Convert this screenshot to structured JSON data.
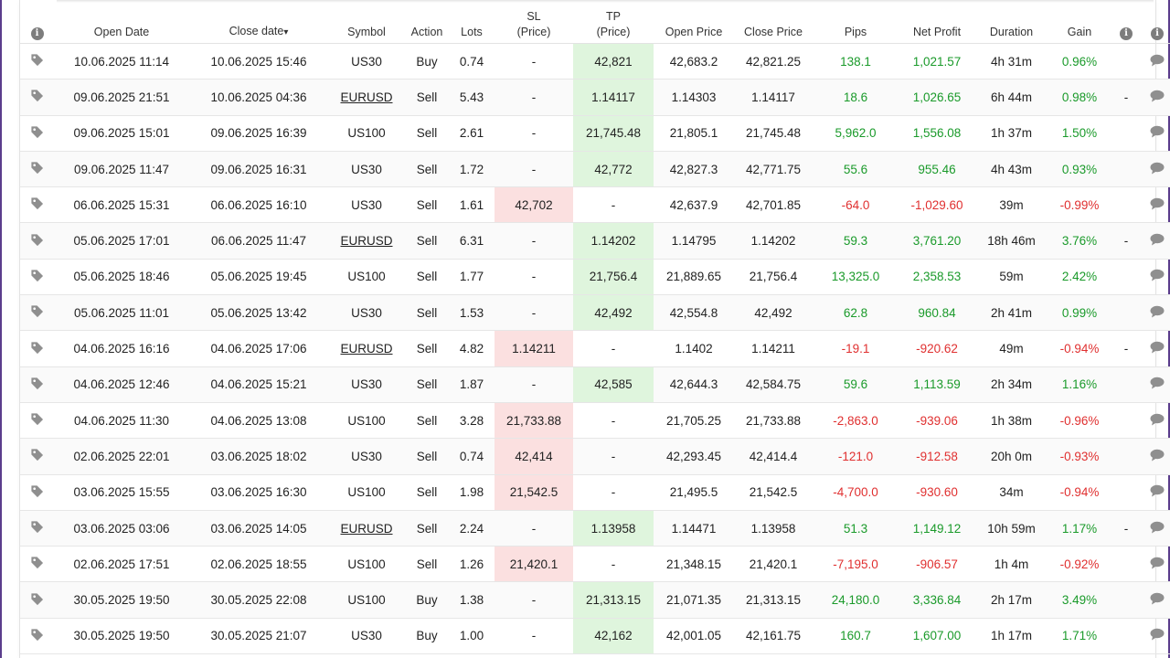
{
  "headers": {
    "open_date": "Open Date",
    "close_date": "Close date",
    "close_sort_arrow": "▾",
    "symbol": "Symbol",
    "action": "Action",
    "lots": "Lots",
    "sl_1": "SL",
    "sl_2": "(Price)",
    "tp_1": "TP",
    "tp_2": "(Price)",
    "open_price": "Open Price",
    "close_price": "Close Price",
    "pips": "Pips",
    "net_profit": "Net Profit",
    "duration": "Duration",
    "gain": "Gain"
  },
  "icons": {
    "info": "info-icon",
    "tag": "tag-icon",
    "comment": "comment-icon"
  },
  "colors": {
    "positive": "#1a9a2a",
    "negative": "#e03030",
    "tp_highlight": "#dff5dd",
    "sl_highlight": "#fbe0e0"
  },
  "rows": [
    {
      "open": "10.06.2025 11:14",
      "close": "10.06.2025 15:46",
      "symbol": "US30",
      "link": false,
      "action": "Buy",
      "lots": "0.74",
      "sl": "-",
      "tp": "42,821",
      "hit": "tp",
      "open_price": "42,683.2",
      "close_price": "42,821.25",
      "pips": "138.1",
      "profit": "1,021.57",
      "duration": "4h 31m",
      "gain": "0.96%",
      "extra": "",
      "sign": "pos"
    },
    {
      "open": "09.06.2025 21:51",
      "close": "10.06.2025 04:36",
      "symbol": "EURUSD",
      "link": true,
      "action": "Sell",
      "lots": "5.43",
      "sl": "-",
      "tp": "1.14117",
      "hit": "tp",
      "open_price": "1.14303",
      "close_price": "1.14117",
      "pips": "18.6",
      "profit": "1,026.65",
      "duration": "6h 44m",
      "gain": "0.98%",
      "extra": "-",
      "sign": "pos"
    },
    {
      "open": "09.06.2025 15:01",
      "close": "09.06.2025 16:39",
      "symbol": "US100",
      "link": false,
      "action": "Sell",
      "lots": "2.61",
      "sl": "-",
      "tp": "21,745.48",
      "hit": "tp",
      "open_price": "21,805.1",
      "close_price": "21,745.48",
      "pips": "5,962.0",
      "profit": "1,556.08",
      "duration": "1h 37m",
      "gain": "1.50%",
      "extra": "",
      "sign": "pos"
    },
    {
      "open": "09.06.2025 11:47",
      "close": "09.06.2025 16:31",
      "symbol": "US30",
      "link": false,
      "action": "Sell",
      "lots": "1.72",
      "sl": "-",
      "tp": "42,772",
      "hit": "tp",
      "open_price": "42,827.3",
      "close_price": "42,771.75",
      "pips": "55.6",
      "profit": "955.46",
      "duration": "4h 43m",
      "gain": "0.93%",
      "extra": "",
      "sign": "pos"
    },
    {
      "open": "06.06.2025 15:31",
      "close": "06.06.2025 16:10",
      "symbol": "US30",
      "link": false,
      "action": "Sell",
      "lots": "1.61",
      "sl": "42,702",
      "tp": "-",
      "hit": "sl",
      "open_price": "42,637.9",
      "close_price": "42,701.85",
      "pips": "-64.0",
      "profit": "-1,029.60",
      "duration": "39m",
      "gain": "-0.99%",
      "extra": "",
      "sign": "neg"
    },
    {
      "open": "05.06.2025 17:01",
      "close": "06.06.2025 11:47",
      "symbol": "EURUSD",
      "link": true,
      "action": "Sell",
      "lots": "6.31",
      "sl": "-",
      "tp": "1.14202",
      "hit": "tp",
      "open_price": "1.14795",
      "close_price": "1.14202",
      "pips": "59.3",
      "profit": "3,761.20",
      "duration": "18h 46m",
      "gain": "3.76%",
      "extra": "-",
      "sign": "pos"
    },
    {
      "open": "05.06.2025 18:46",
      "close": "05.06.2025 19:45",
      "symbol": "US100",
      "link": false,
      "action": "Sell",
      "lots": "1.77",
      "sl": "-",
      "tp": "21,756.4",
      "hit": "tp",
      "open_price": "21,889.65",
      "close_price": "21,756.4",
      "pips": "13,325.0",
      "profit": "2,358.53",
      "duration": "59m",
      "gain": "2.42%",
      "extra": "",
      "sign": "pos"
    },
    {
      "open": "05.06.2025 11:01",
      "close": "05.06.2025 13:42",
      "symbol": "US30",
      "link": false,
      "action": "Sell",
      "lots": "1.53",
      "sl": "-",
      "tp": "42,492",
      "hit": "tp",
      "open_price": "42,554.8",
      "close_price": "42,492",
      "pips": "62.8",
      "profit": "960.84",
      "duration": "2h 41m",
      "gain": "0.99%",
      "extra": "",
      "sign": "pos"
    },
    {
      "open": "04.06.2025 16:16",
      "close": "04.06.2025 17:06",
      "symbol": "EURUSD",
      "link": true,
      "action": "Sell",
      "lots": "4.82",
      "sl": "1.14211",
      "tp": "-",
      "hit": "sl",
      "open_price": "1.1402",
      "close_price": "1.14211",
      "pips": "-19.1",
      "profit": "-920.62",
      "duration": "49m",
      "gain": "-0.94%",
      "extra": "-",
      "sign": "neg"
    },
    {
      "open": "04.06.2025 12:46",
      "close": "04.06.2025 15:21",
      "symbol": "US30",
      "link": false,
      "action": "Sell",
      "lots": "1.87",
      "sl": "-",
      "tp": "42,585",
      "hit": "tp",
      "open_price": "42,644.3",
      "close_price": "42,584.75",
      "pips": "59.6",
      "profit": "1,113.59",
      "duration": "2h 34m",
      "gain": "1.16%",
      "extra": "",
      "sign": "pos"
    },
    {
      "open": "04.06.2025 11:30",
      "close": "04.06.2025 13:08",
      "symbol": "US100",
      "link": false,
      "action": "Sell",
      "lots": "3.28",
      "sl": "21,733.88",
      "tp": "-",
      "hit": "sl",
      "open_price": "21,705.25",
      "close_price": "21,733.88",
      "pips": "-2,863.0",
      "profit": "-939.06",
      "duration": "1h 38m",
      "gain": "-0.96%",
      "extra": "",
      "sign": "neg"
    },
    {
      "open": "02.06.2025 22:01",
      "close": "03.06.2025 18:02",
      "symbol": "US30",
      "link": false,
      "action": "Sell",
      "lots": "0.74",
      "sl": "42,414",
      "tp": "-",
      "hit": "sl",
      "open_price": "42,293.45",
      "close_price": "42,414.4",
      "pips": "-121.0",
      "profit": "-912.58",
      "duration": "20h 0m",
      "gain": "-0.93%",
      "extra": "",
      "sign": "neg"
    },
    {
      "open": "03.06.2025 15:55",
      "close": "03.06.2025 16:30",
      "symbol": "US100",
      "link": false,
      "action": "Sell",
      "lots": "1.98",
      "sl": "21,542.5",
      "tp": "-",
      "hit": "sl",
      "open_price": "21,495.5",
      "close_price": "21,542.5",
      "pips": "-4,700.0",
      "profit": "-930.60",
      "duration": "34m",
      "gain": "-0.94%",
      "extra": "",
      "sign": "neg"
    },
    {
      "open": "03.06.2025 03:06",
      "close": "03.06.2025 14:05",
      "symbol": "EURUSD",
      "link": true,
      "action": "Sell",
      "lots": "2.24",
      "sl": "-",
      "tp": "1.13958",
      "hit": "tp",
      "open_price": "1.14471",
      "close_price": "1.13958",
      "pips": "51.3",
      "profit": "1,149.12",
      "duration": "10h 59m",
      "gain": "1.17%",
      "extra": "-",
      "sign": "pos"
    },
    {
      "open": "02.06.2025 17:51",
      "close": "02.06.2025 18:55",
      "symbol": "US100",
      "link": false,
      "action": "Sell",
      "lots": "1.26",
      "sl": "21,420.1",
      "tp": "-",
      "hit": "sl",
      "open_price": "21,348.15",
      "close_price": "21,420.1",
      "pips": "-7,195.0",
      "profit": "-906.57",
      "duration": "1h 4m",
      "gain": "-0.92%",
      "extra": "",
      "sign": "neg"
    },
    {
      "open": "30.05.2025 19:50",
      "close": "30.05.2025 22:08",
      "symbol": "US100",
      "link": false,
      "action": "Buy",
      "lots": "1.38",
      "sl": "-",
      "tp": "21,313.15",
      "hit": "tp",
      "open_price": "21,071.35",
      "close_price": "21,313.15",
      "pips": "24,180.0",
      "profit": "3,336.84",
      "duration": "2h 17m",
      "gain": "3.49%",
      "extra": "",
      "sign": "pos"
    },
    {
      "open": "30.05.2025 19:50",
      "close": "30.05.2025 21:07",
      "symbol": "US30",
      "link": false,
      "action": "Buy",
      "lots": "1.00",
      "sl": "-",
      "tp": "42,162",
      "hit": "tp",
      "open_price": "42,001.05",
      "close_price": "42,161.75",
      "pips": "160.7",
      "profit": "1,607.00",
      "duration": "1h 17m",
      "gain": "1.71%",
      "extra": "",
      "sign": "pos"
    }
  ]
}
